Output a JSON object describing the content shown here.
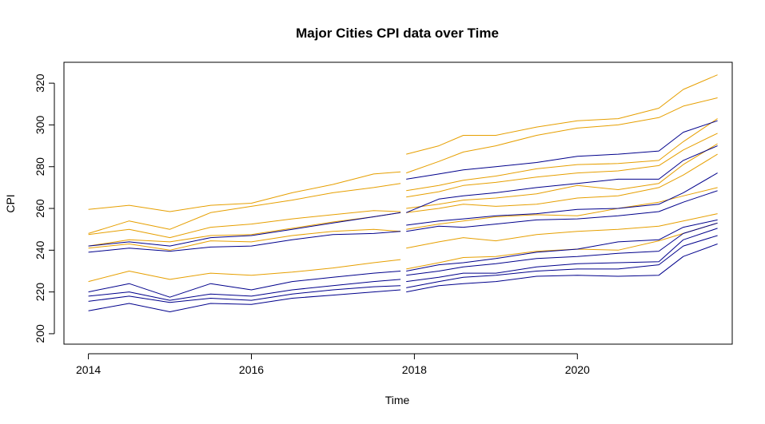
{
  "chart_data": {
    "type": "line",
    "title": "Major Cities CPI data over Time",
    "xlabel": "Time",
    "ylabel": "CPI",
    "xlim": [
      2013.7,
      2021.9
    ],
    "ylim": [
      195,
      330
    ],
    "x_ticks": [
      2014,
      2016,
      2018,
      2020
    ],
    "y_ticks": [
      200,
      220,
      240,
      260,
      280,
      300,
      320
    ],
    "grid": false,
    "legend": "none",
    "colors": {
      "orange": "#E69F00",
      "blue": "#00008B"
    },
    "series": [
      {
        "color": "orange",
        "x": [
          2014,
          2014.5,
          2015,
          2015.5,
          2016,
          2016.5,
          2017,
          2017.5,
          2017.83
        ],
        "y": [
          259.5,
          261.5,
          258.5,
          261.5,
          262.5,
          267.5,
          271.5,
          276.5,
          277.5
        ]
      },
      {
        "color": "orange",
        "x": [
          2014,
          2014.5,
          2015,
          2015.5,
          2016,
          2016.5,
          2017,
          2017.5,
          2017.83
        ],
        "y": [
          248,
          254,
          250,
          258,
          261,
          264,
          267.5,
          270,
          272
        ]
      },
      {
        "color": "orange",
        "x": [
          2014,
          2014.5,
          2015,
          2015.5,
          2016,
          2016.5,
          2017,
          2017.5,
          2017.83
        ],
        "y": [
          247.5,
          250,
          246,
          251,
          252.5,
          255,
          257,
          259,
          258.5
        ]
      },
      {
        "color": "orange",
        "x": [
          2014,
          2014.5,
          2015,
          2015.5,
          2016,
          2016.5,
          2017,
          2017.5,
          2017.83
        ],
        "y": [
          242,
          245,
          244,
          247,
          247.5,
          250.5,
          253.5,
          256,
          258
        ]
      },
      {
        "color": "orange",
        "x": [
          2014,
          2014.5,
          2015,
          2015.5,
          2016,
          2016.5,
          2017,
          2017.5,
          2017.83
        ],
        "y": [
          241,
          243,
          240,
          244.5,
          244,
          247,
          249,
          250,
          249
        ]
      },
      {
        "color": "orange",
        "x": [
          2014,
          2014.5,
          2015,
          2015.5,
          2016,
          2016.5,
          2017,
          2017.5,
          2017.83
        ],
        "y": [
          225,
          230,
          226,
          229,
          228,
          229.5,
          231.5,
          234,
          235.5
        ]
      },
      {
        "color": "blue",
        "x": [
          2014,
          2014.5,
          2015,
          2015.5,
          2016,
          2016.5,
          2017,
          2017.5,
          2017.83
        ],
        "y": [
          242,
          244,
          242,
          246,
          247,
          250,
          253,
          256,
          258
        ]
      },
      {
        "color": "blue",
        "x": [
          2014,
          2014.5,
          2015,
          2015.5,
          2016,
          2016.5,
          2017,
          2017.5,
          2017.83
        ],
        "y": [
          239,
          241,
          239.5,
          241.5,
          242,
          245,
          247.5,
          248,
          249
        ]
      },
      {
        "color": "blue",
        "x": [
          2014,
          2014.5,
          2015,
          2015.5,
          2016,
          2016.5,
          2017,
          2017.5,
          2017.83
        ],
        "y": [
          220,
          224,
          217.5,
          224,
          221,
          225,
          227,
          229,
          230
        ]
      },
      {
        "color": "blue",
        "x": [
          2014,
          2014.5,
          2015,
          2015.5,
          2016,
          2016.5,
          2017,
          2017.5,
          2017.83
        ],
        "y": [
          218,
          220,
          216,
          219,
          218,
          221,
          223,
          225,
          226
        ]
      },
      {
        "color": "blue",
        "x": [
          2014,
          2014.5,
          2015,
          2015.5,
          2016,
          2016.5,
          2017,
          2017.5,
          2017.83
        ],
        "y": [
          215.5,
          218,
          215,
          217,
          216,
          219,
          221,
          222.5,
          223
        ]
      },
      {
        "color": "blue",
        "x": [
          2014,
          2014.5,
          2015,
          2015.5,
          2016,
          2016.5,
          2017,
          2017.5,
          2017.83
        ],
        "y": [
          211,
          214.5,
          210.5,
          214.5,
          214,
          217,
          218.5,
          220,
          221
        ]
      },
      {
        "color": "orange",
        "x": [
          2017.9,
          2018.3,
          2018.6,
          2019,
          2019.5,
          2020,
          2020.5,
          2021,
          2021.3,
          2021.72
        ],
        "y": [
          286,
          290,
          295,
          295,
          299,
          302,
          303,
          308,
          317,
          324
        ]
      },
      {
        "color": "orange",
        "x": [
          2017.9,
          2018.3,
          2018.6,
          2019,
          2019.5,
          2020,
          2020.5,
          2021,
          2021.3,
          2021.72
        ],
        "y": [
          277,
          282.5,
          287,
          290,
          295,
          298.5,
          300,
          303.5,
          309,
          313
        ]
      },
      {
        "color": "orange",
        "x": [
          2017.9,
          2018.3,
          2018.6,
          2019,
          2019.5,
          2020,
          2020.5,
          2021,
          2021.3,
          2021.72
        ],
        "y": [
          268.5,
          271,
          273.5,
          275.5,
          279,
          281,
          281.5,
          283,
          292,
          303
        ]
      },
      {
        "color": "orange",
        "x": [
          2017.9,
          2018.3,
          2018.6,
          2019,
          2019.5,
          2020,
          2020.5,
          2021,
          2021.3,
          2021.72
        ],
        "y": [
          265.5,
          268,
          271,
          272.5,
          275,
          277,
          278,
          280.5,
          288,
          296
        ]
      },
      {
        "color": "orange",
        "x": [
          2017.9,
          2018.3,
          2018.6,
          2019,
          2019.5,
          2020,
          2020.5,
          2021,
          2021.3,
          2021.72
        ],
        "y": [
          260,
          262,
          264,
          265,
          267,
          271,
          269,
          272,
          281,
          291
        ]
      },
      {
        "color": "orange",
        "x": [
          2017.9,
          2018.3,
          2018.6,
          2019,
          2019.5,
          2020,
          2020.5,
          2021,
          2021.3,
          2021.72
        ],
        "y": [
          258,
          260,
          262,
          261,
          262,
          265,
          266,
          270,
          276,
          286
        ]
      },
      {
        "color": "orange",
        "x": [
          2017.9,
          2018.3,
          2018.6,
          2019,
          2019.5,
          2020,
          2020.5,
          2021,
          2021.3,
          2021.72
        ],
        "y": [
          250,
          252.5,
          254,
          256,
          257,
          256.5,
          260,
          263,
          266,
          270
        ]
      },
      {
        "color": "orange",
        "x": [
          2017.9,
          2018.3,
          2018.6,
          2019,
          2019.5,
          2020,
          2020.5,
          2021,
          2021.3,
          2021.72
        ],
        "y": [
          241,
          244,
          246,
          244.5,
          247.5,
          249,
          250,
          251.5,
          254,
          257.5
        ]
      },
      {
        "color": "orange",
        "x": [
          2017.9,
          2018.3,
          2018.6,
          2019,
          2019.5,
          2020,
          2020.5,
          2021,
          2021.3,
          2021.72
        ],
        "y": [
          231,
          234,
          236.5,
          237,
          239.5,
          240.5,
          240,
          244.5,
          248,
          253
        ]
      },
      {
        "color": "blue",
        "x": [
          2017.9,
          2018.3,
          2018.6,
          2019,
          2019.5,
          2020,
          2020.5,
          2021,
          2021.3,
          2021.72
        ],
        "y": [
          274,
          276.5,
          278.5,
          280,
          282,
          285,
          286,
          287.5,
          296.5,
          302
        ]
      },
      {
        "color": "blue",
        "x": [
          2017.9,
          2018.3,
          2018.6,
          2019,
          2019.5,
          2020,
          2020.5,
          2021,
          2021.3,
          2021.72
        ],
        "y": [
          258,
          264.5,
          266,
          267.5,
          270,
          272,
          274,
          274,
          283,
          290
        ]
      },
      {
        "color": "blue",
        "x": [
          2017.9,
          2018.3,
          2018.6,
          2019,
          2019.5,
          2020,
          2020.5,
          2021,
          2021.3,
          2021.72
        ],
        "y": [
          252,
          254,
          255,
          256.5,
          257.5,
          259.5,
          260,
          262,
          267.5,
          277
        ]
      },
      {
        "color": "blue",
        "x": [
          2017.9,
          2018.3,
          2018.6,
          2019,
          2019.5,
          2020,
          2020.5,
          2021,
          2021.3,
          2021.72
        ],
        "y": [
          249,
          251.5,
          251,
          252.5,
          254.5,
          255,
          256.5,
          258.5,
          263,
          268.5
        ]
      },
      {
        "color": "blue",
        "x": [
          2017.9,
          2018.3,
          2018.6,
          2019,
          2019.5,
          2020,
          2020.5,
          2021,
          2021.3,
          2021.72
        ],
        "y": [
          230,
          233,
          234,
          236,
          239,
          240.5,
          244,
          245,
          251,
          254.5
        ]
      },
      {
        "color": "blue",
        "x": [
          2017.9,
          2018.3,
          2018.6,
          2019,
          2019.5,
          2020,
          2020.5,
          2021,
          2021.3,
          2021.72
        ],
        "y": [
          228,
          230,
          232,
          233.5,
          236,
          237,
          238.5,
          239.5,
          248,
          253
        ]
      },
      {
        "color": "blue",
        "x": [
          2017.9,
          2018.3,
          2018.6,
          2019,
          2019.5,
          2020,
          2020.5,
          2021,
          2021.3,
          2021.72
        ],
        "y": [
          225,
          227,
          229,
          229,
          232,
          233.5,
          234,
          234.5,
          245,
          250.5
        ]
      },
      {
        "color": "blue",
        "x": [
          2017.9,
          2018.3,
          2018.6,
          2019,
          2019.5,
          2020,
          2020.5,
          2021,
          2021.3,
          2021.72
        ],
        "y": [
          222,
          225,
          227,
          228,
          230,
          231,
          231,
          233,
          242,
          247
        ]
      },
      {
        "color": "blue",
        "x": [
          2017.9,
          2018.3,
          2018.6,
          2019,
          2019.5,
          2020,
          2020.5,
          2021,
          2021.3,
          2021.72
        ],
        "y": [
          220,
          223,
          224,
          225,
          227.5,
          228,
          227.5,
          228,
          237,
          243
        ]
      }
    ]
  }
}
